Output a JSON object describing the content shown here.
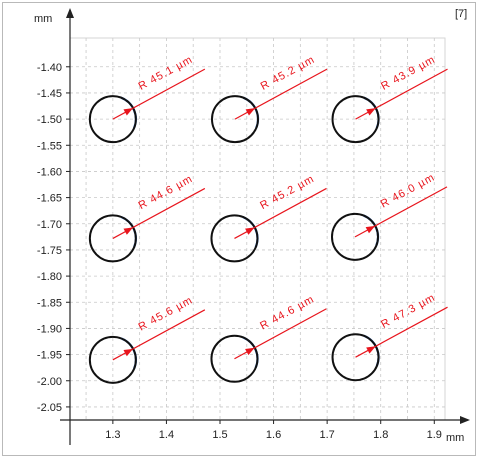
{
  "window": {
    "panel_index": "[7]"
  },
  "chart_data": {
    "type": "scatter",
    "x_unit": "mm",
    "y_unit": "mm",
    "xlim": [
      1.22,
      1.92
    ],
    "ylim": [
      -2.075,
      -1.345
    ],
    "x_ticks": [
      "1.3",
      "1.4",
      "1.5",
      "1.6",
      "1.7",
      "1.8",
      "1.9"
    ],
    "y_ticks": [
      "-1.40",
      "-1.45",
      "-1.50",
      "-1.55",
      "-1.60",
      "-1.65",
      "-1.70",
      "-1.75",
      "-1.80",
      "-1.85",
      "-1.90",
      "-1.95",
      "-2.00",
      "-2.05"
    ],
    "grid": true,
    "circles": [
      {
        "x": 1.3,
        "y": -1.5,
        "label": "R 45.1 µm"
      },
      {
        "x": 1.528,
        "y": -1.5,
        "label": "R 45.2 µm"
      },
      {
        "x": 1.753,
        "y": -1.5,
        "label": "R 43.9 µm"
      },
      {
        "x": 1.3,
        "y": -1.728,
        "label": "R 44.6 µm"
      },
      {
        "x": 1.527,
        "y": -1.728,
        "label": "R 45.2 µm"
      },
      {
        "x": 1.752,
        "y": -1.725,
        "label": "R 46.0 µm"
      },
      {
        "x": 1.3,
        "y": -1.96,
        "label": "R 45.6 µm"
      },
      {
        "x": 1.527,
        "y": -1.958,
        "label": "R 44.6 µm"
      },
      {
        "x": 1.753,
        "y": -1.955,
        "label": "R 47.3 µm"
      }
    ],
    "colors": {
      "circle": "#111111",
      "fit": "#3a78d6",
      "annotation": "#e8151d",
      "grid": "#c8c8c8",
      "axis": "#222222"
    }
  }
}
